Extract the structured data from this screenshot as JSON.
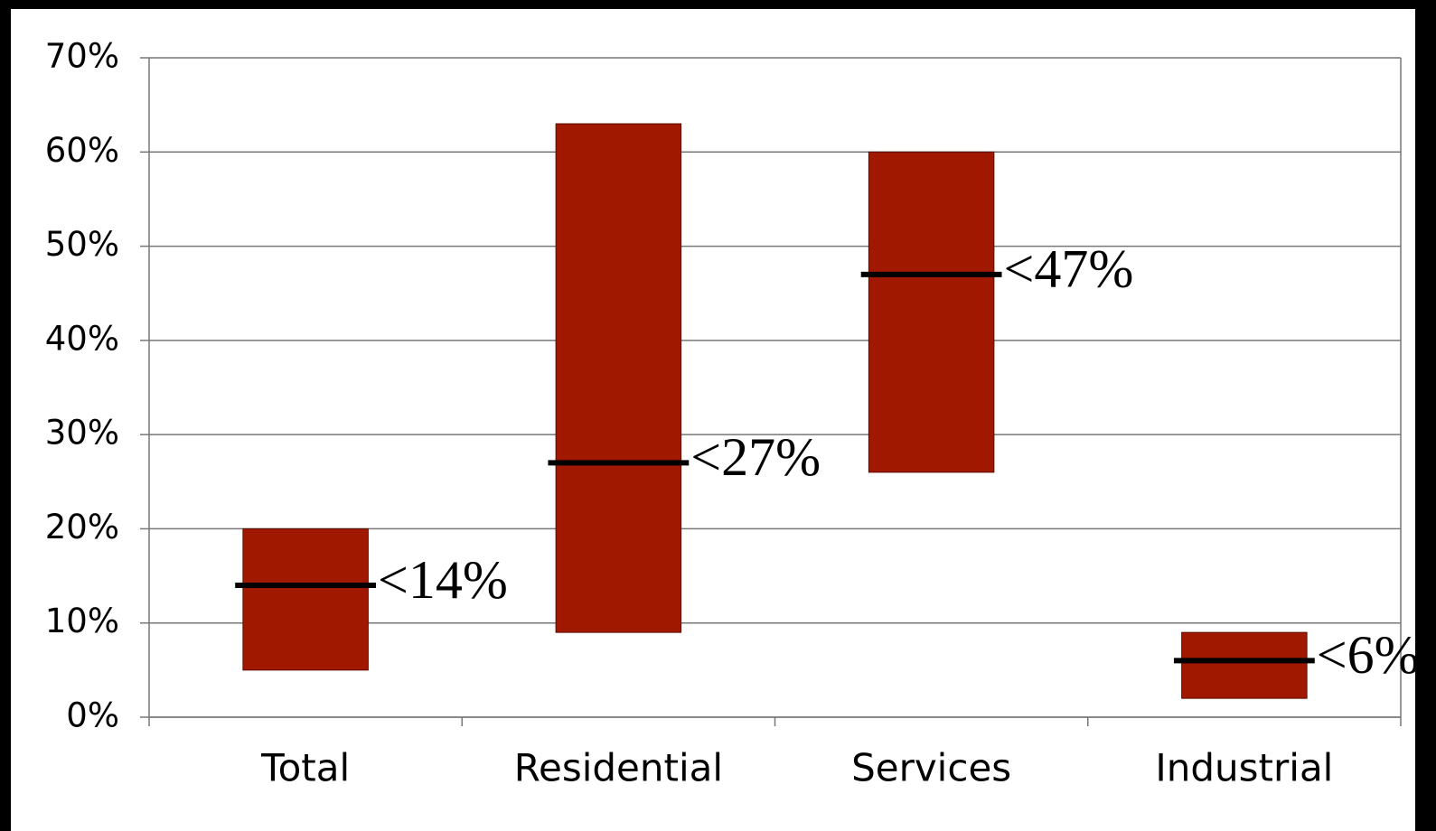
{
  "chart_data": {
    "type": "floating-bar",
    "categories": [
      "Total",
      "Residential",
      "Services",
      "Industrial"
    ],
    "low": [
      5,
      9,
      26,
      2
    ],
    "high": [
      20,
      63,
      60,
      9
    ],
    "values": [
      14,
      27,
      47,
      6
    ],
    "value_labels": [
      "<14%",
      "<27%",
      "<47%",
      "<6%"
    ],
    "color": "#a11800",
    "marker_color": "#000000",
    "ylim": [
      0,
      70
    ],
    "yticks": [
      {
        "value": 0,
        "label": "0%"
      },
      {
        "value": 10,
        "label": "10%"
      },
      {
        "value": 20,
        "label": "20%"
      },
      {
        "value": 30,
        "label": "30%"
      },
      {
        "value": 40,
        "label": "40%"
      },
      {
        "value": 50,
        "label": "50%"
      },
      {
        "value": 60,
        "label": "60%"
      },
      {
        "value": 70,
        "label": "70%"
      }
    ],
    "grid": true
  }
}
